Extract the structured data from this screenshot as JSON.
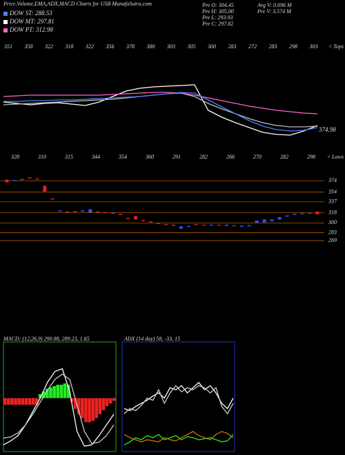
{
  "header": {
    "title": "Price,Volume,EMA,ADX,MACD Charts for USB MunafaSutra.com",
    "legend": [
      {
        "label": "DOW ST: 288.53",
        "color": "#4f7fff"
      },
      {
        "label": "DOW MT: 297.81",
        "color": "#ffffff"
      },
      {
        "label": "DOW PT: 312.98",
        "color": "#ff66cc"
      }
    ],
    "prev": [
      "Pre O: 304.45",
      "Pre H: 305.00",
      "Pre L: 293.93",
      "Pre C: 297.82"
    ],
    "volume": [
      "Avg V: 0.696  M",
      "Pre V: 3.574  M"
    ]
  },
  "chart_data": [
    {
      "type": "line",
      "tops": [
        351,
        358,
        322,
        318,
        322,
        356,
        378,
        380,
        303,
        305,
        300,
        283,
        272,
        283,
        298,
        303
      ],
      "tops_label": "< Tops",
      "lows": [
        328,
        310,
        315,
        344,
        354,
        360,
        291,
        282,
        266,
        270,
        282,
        298
      ],
      "lows_label": "< Lows",
      "last_label": 374.98,
      "ylim": [
        250,
        420
      ],
      "series": [
        {
          "color": "#ffffff",
          "values": [
            332,
            330,
            328,
            330,
            331,
            329,
            327,
            332,
            340,
            348,
            352,
            354,
            355,
            356,
            357,
            320,
            310,
            302,
            295,
            288,
            285,
            284,
            290,
            298
          ]
        },
        {
          "color": "#bbbbbb",
          "values": [
            328,
            329,
            330,
            331,
            332,
            333,
            334,
            335,
            336,
            338,
            340,
            342,
            344,
            345,
            340,
            330,
            322,
            315,
            308,
            302,
            298,
            296,
            296,
            297
          ]
        },
        {
          "color": "#ff66cc",
          "values": [
            340,
            341,
            342,
            342,
            342,
            342,
            342,
            342,
            343,
            344,
            345,
            346,
            346,
            345,
            342,
            338,
            334,
            330,
            326,
            323,
            320,
            318,
            316,
            315
          ]
        },
        {
          "color": "#4f7fff",
          "values": [
            333,
            333,
            334,
            334,
            335,
            335,
            336,
            337,
            338,
            339,
            340,
            342,
            344,
            346,
            345,
            335,
            325,
            315,
            305,
            297,
            292,
            290,
            291,
            295
          ]
        }
      ]
    },
    {
      "type": "candlestick",
      "ylim": [
        260,
        385
      ],
      "yticks": [
        374,
        354,
        337,
        318,
        300,
        283,
        269
      ],
      "grid": true,
      "up_color": "#3355ff",
      "down_color": "#dd2222",
      "open": [
        376,
        374,
        377,
        380,
        378,
        365,
        343,
        322,
        320,
        321,
        320,
        318,
        320,
        319,
        318,
        316,
        309,
        312,
        305,
        303,
        300,
        298,
        297,
        290,
        294,
        298,
        297,
        296,
        297,
        295,
        296,
        294,
        296,
        300,
        301,
        303,
        306,
        313,
        316,
        316,
        318,
        320
      ],
      "close": [
        371,
        375,
        377,
        378,
        377,
        355,
        342,
        322,
        319,
        320,
        322,
        324,
        319,
        318,
        318,
        314,
        308,
        306,
        303,
        301,
        299,
        297,
        295,
        294,
        295,
        297,
        296,
        297,
        296,
        297,
        295,
        295,
        296,
        304,
        306,
        306,
        310,
        313,
        316,
        317,
        318,
        315
      ]
    },
    {
      "type": "macd",
      "title": "MACD: (12,26,9) 290.88, 289.23, 1.65",
      "ylim": [
        -40,
        40
      ],
      "up_color": "#22ee22",
      "down_color": "#ee2222",
      "histogram": [
        -5,
        -5,
        -5,
        -5,
        -5,
        -5,
        -5,
        -5,
        -5,
        -5,
        3,
        5,
        7,
        8,
        9,
        10,
        10,
        11,
        10,
        -3,
        -8,
        -12,
        -15,
        -18,
        -18,
        -17,
        -15,
        -12,
        -9,
        -6,
        -4,
        -2
      ],
      "series": [
        {
          "color": "#ffffff",
          "values": [
            -35,
            -32,
            -28,
            -20,
            -10,
            0,
            12,
            20,
            22,
            5,
            -25,
            -36,
            -35,
            -28,
            -20,
            -12
          ]
        },
        {
          "color": "#cccccc",
          "values": [
            -30,
            -29,
            -26,
            -20,
            -12,
            -3,
            6,
            14,
            18,
            14,
            -5,
            -25,
            -34,
            -33,
            -28,
            -20
          ]
        }
      ]
    },
    {
      "type": "adx",
      "title": "ADX (14 day) 58, -33, 15",
      "ylim": [
        0,
        100
      ],
      "series": [
        {
          "color": "#ffffff",
          "values": [
            40,
            38,
            42,
            45,
            48,
            52,
            55,
            50,
            60,
            58,
            62,
            55,
            60,
            65,
            58,
            62,
            55,
            45,
            40,
            50
          ]
        },
        {
          "color": "#cccccc",
          "values": [
            35,
            40,
            38,
            43,
            50,
            48,
            58,
            45,
            55,
            62,
            56,
            60,
            58,
            62,
            60,
            55,
            60,
            42,
            35,
            45
          ]
        },
        {
          "color": "#22ee22",
          "values": [
            5,
            8,
            12,
            10,
            14,
            12,
            15,
            10,
            12,
            14,
            10,
            13,
            12,
            10,
            11,
            12,
            10,
            8,
            9,
            15
          ]
        },
        {
          "color": "#cc7700",
          "values": [
            15,
            12,
            10,
            8,
            10,
            9,
            8,
            12,
            10,
            9,
            12,
            15,
            18,
            14,
            12,
            10,
            15,
            18,
            16,
            12
          ]
        }
      ]
    }
  ]
}
